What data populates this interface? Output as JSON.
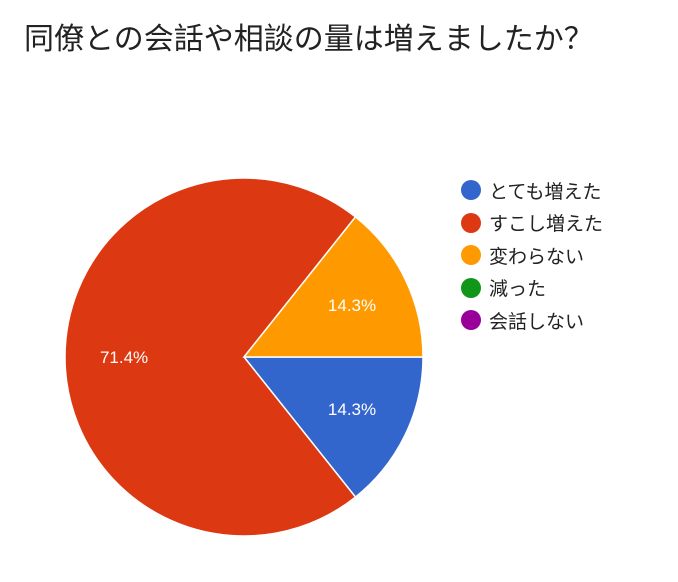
{
  "chart_data": {
    "type": "pie",
    "title": "同僚との会話や相談の量は増えましたか？",
    "categories": [
      "とても増えた",
      "すこし増えた",
      "変わらない",
      "減った",
      "会話しない"
    ],
    "values": [
      14.3,
      71.4,
      14.3,
      0,
      0
    ],
    "data_labels": [
      "14.3%",
      "71.4%",
      "14.3%",
      "",
      ""
    ],
    "colors": [
      "#3366cc",
      "#dc3912",
      "#ff9900",
      "#109618",
      "#990099"
    ],
    "legend_position": "right",
    "start_angle_deg": 90,
    "direction": "clockwise"
  }
}
